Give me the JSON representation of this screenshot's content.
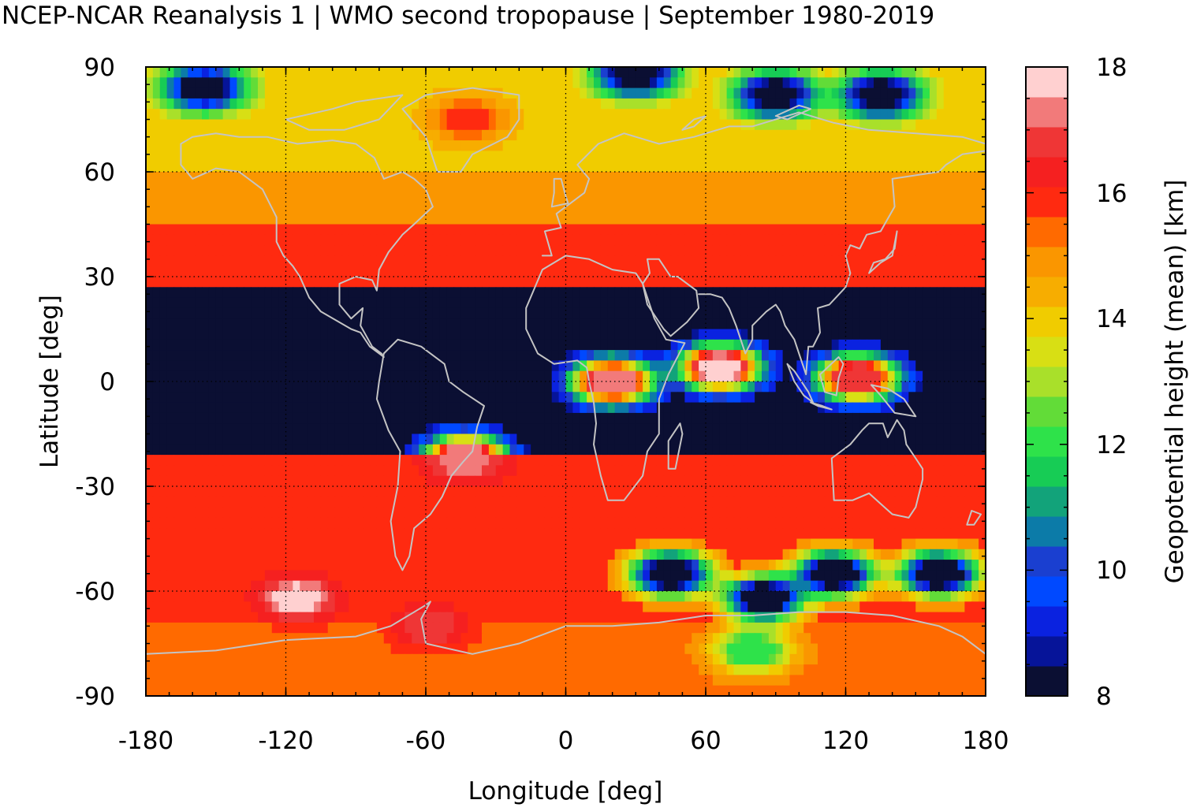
{
  "chart_data": {
    "type": "heatmap",
    "title": "NCEP-NCAR Reanalysis 1 | WMO second tropopause | September 1980-2019",
    "xlabel": "Longitude [deg]",
    "ylabel": "Latitude [deg]",
    "xlim": [
      -180,
      180
    ],
    "ylim": [
      -90,
      90
    ],
    "xticks": [
      "-180",
      "-120",
      "-60",
      "0",
      "60",
      "120",
      "180"
    ],
    "yticks": [
      "90",
      "60",
      "30",
      "0",
      "-30",
      "-60",
      "-90"
    ],
    "grid": true,
    "colorbar": {
      "label": "Geopotential height (mean) [km]",
      "min": 8,
      "max": 18,
      "ticks": [
        "18",
        "16",
        "14",
        "12",
        "10",
        "8"
      ],
      "colors": [
        "#0b0f33",
        "#061499",
        "#0a22e0",
        "#0049ff",
        "#1a3fd0",
        "#0c7ba8",
        "#12a37a",
        "#17cc55",
        "#2ee24a",
        "#62dc38",
        "#a9e02a",
        "#d8df14",
        "#f0cc00",
        "#f7ad00",
        "#fa9600",
        "#ff6a00",
        "#ff2a10",
        "#f52020",
        "#ef3636",
        "#f27a7a",
        "#ffd0d0"
      ]
    },
    "zonal_pattern": [
      {
        "lat_range": [
          60,
          90
        ],
        "value_km": 14.0
      },
      {
        "lat_range": [
          45,
          60
        ],
        "value_km": 15.0
      },
      {
        "lat_range": [
          28,
          45
        ],
        "value_km": 16.0
      },
      {
        "lat_range": [
          -20,
          28
        ],
        "value_km": 8.0
      },
      {
        "lat_range": [
          -45,
          -20
        ],
        "value_km": 16.0
      },
      {
        "lat_range": [
          -70,
          -45
        ],
        "value_km": 15.8
      },
      {
        "lat_range": [
          -90,
          -70
        ],
        "value_km": 15.5
      }
    ],
    "features": [
      {
        "lon": 66,
        "lat": 4,
        "value_km": 17.8
      },
      {
        "lon": 20,
        "lat": 0,
        "value_km": 17.5
      },
      {
        "lon": 125,
        "lat": 1,
        "value_km": 17.2
      },
      {
        "lon": -43,
        "lat": -22,
        "value_km": 17.5
      },
      {
        "lon": -115,
        "lat": -62,
        "value_km": 17.8
      },
      {
        "lon": -58,
        "lat": -70,
        "value_km": 17.0
      },
      {
        "lon": -42,
        "lat": 75,
        "value_km": 15.8
      },
      {
        "lon": 80,
        "lat": -77,
        "value_km": 12.0
      },
      {
        "lon": 45,
        "lat": -55,
        "value_km": 8.0
      },
      {
        "lon": 115,
        "lat": -55,
        "value_km": 8.0
      },
      {
        "lon": 85,
        "lat": -62,
        "value_km": 8.0
      },
      {
        "lon": 160,
        "lat": -55,
        "value_km": 8.0
      },
      {
        "lon": 90,
        "lat": 82,
        "value_km": 8.0
      },
      {
        "lon": 135,
        "lat": 82,
        "value_km": 8.0
      },
      {
        "lon": -155,
        "lat": 84,
        "value_km": 8.0
      },
      {
        "lon": 30,
        "lat": 88,
        "value_km": 8.0
      }
    ]
  }
}
